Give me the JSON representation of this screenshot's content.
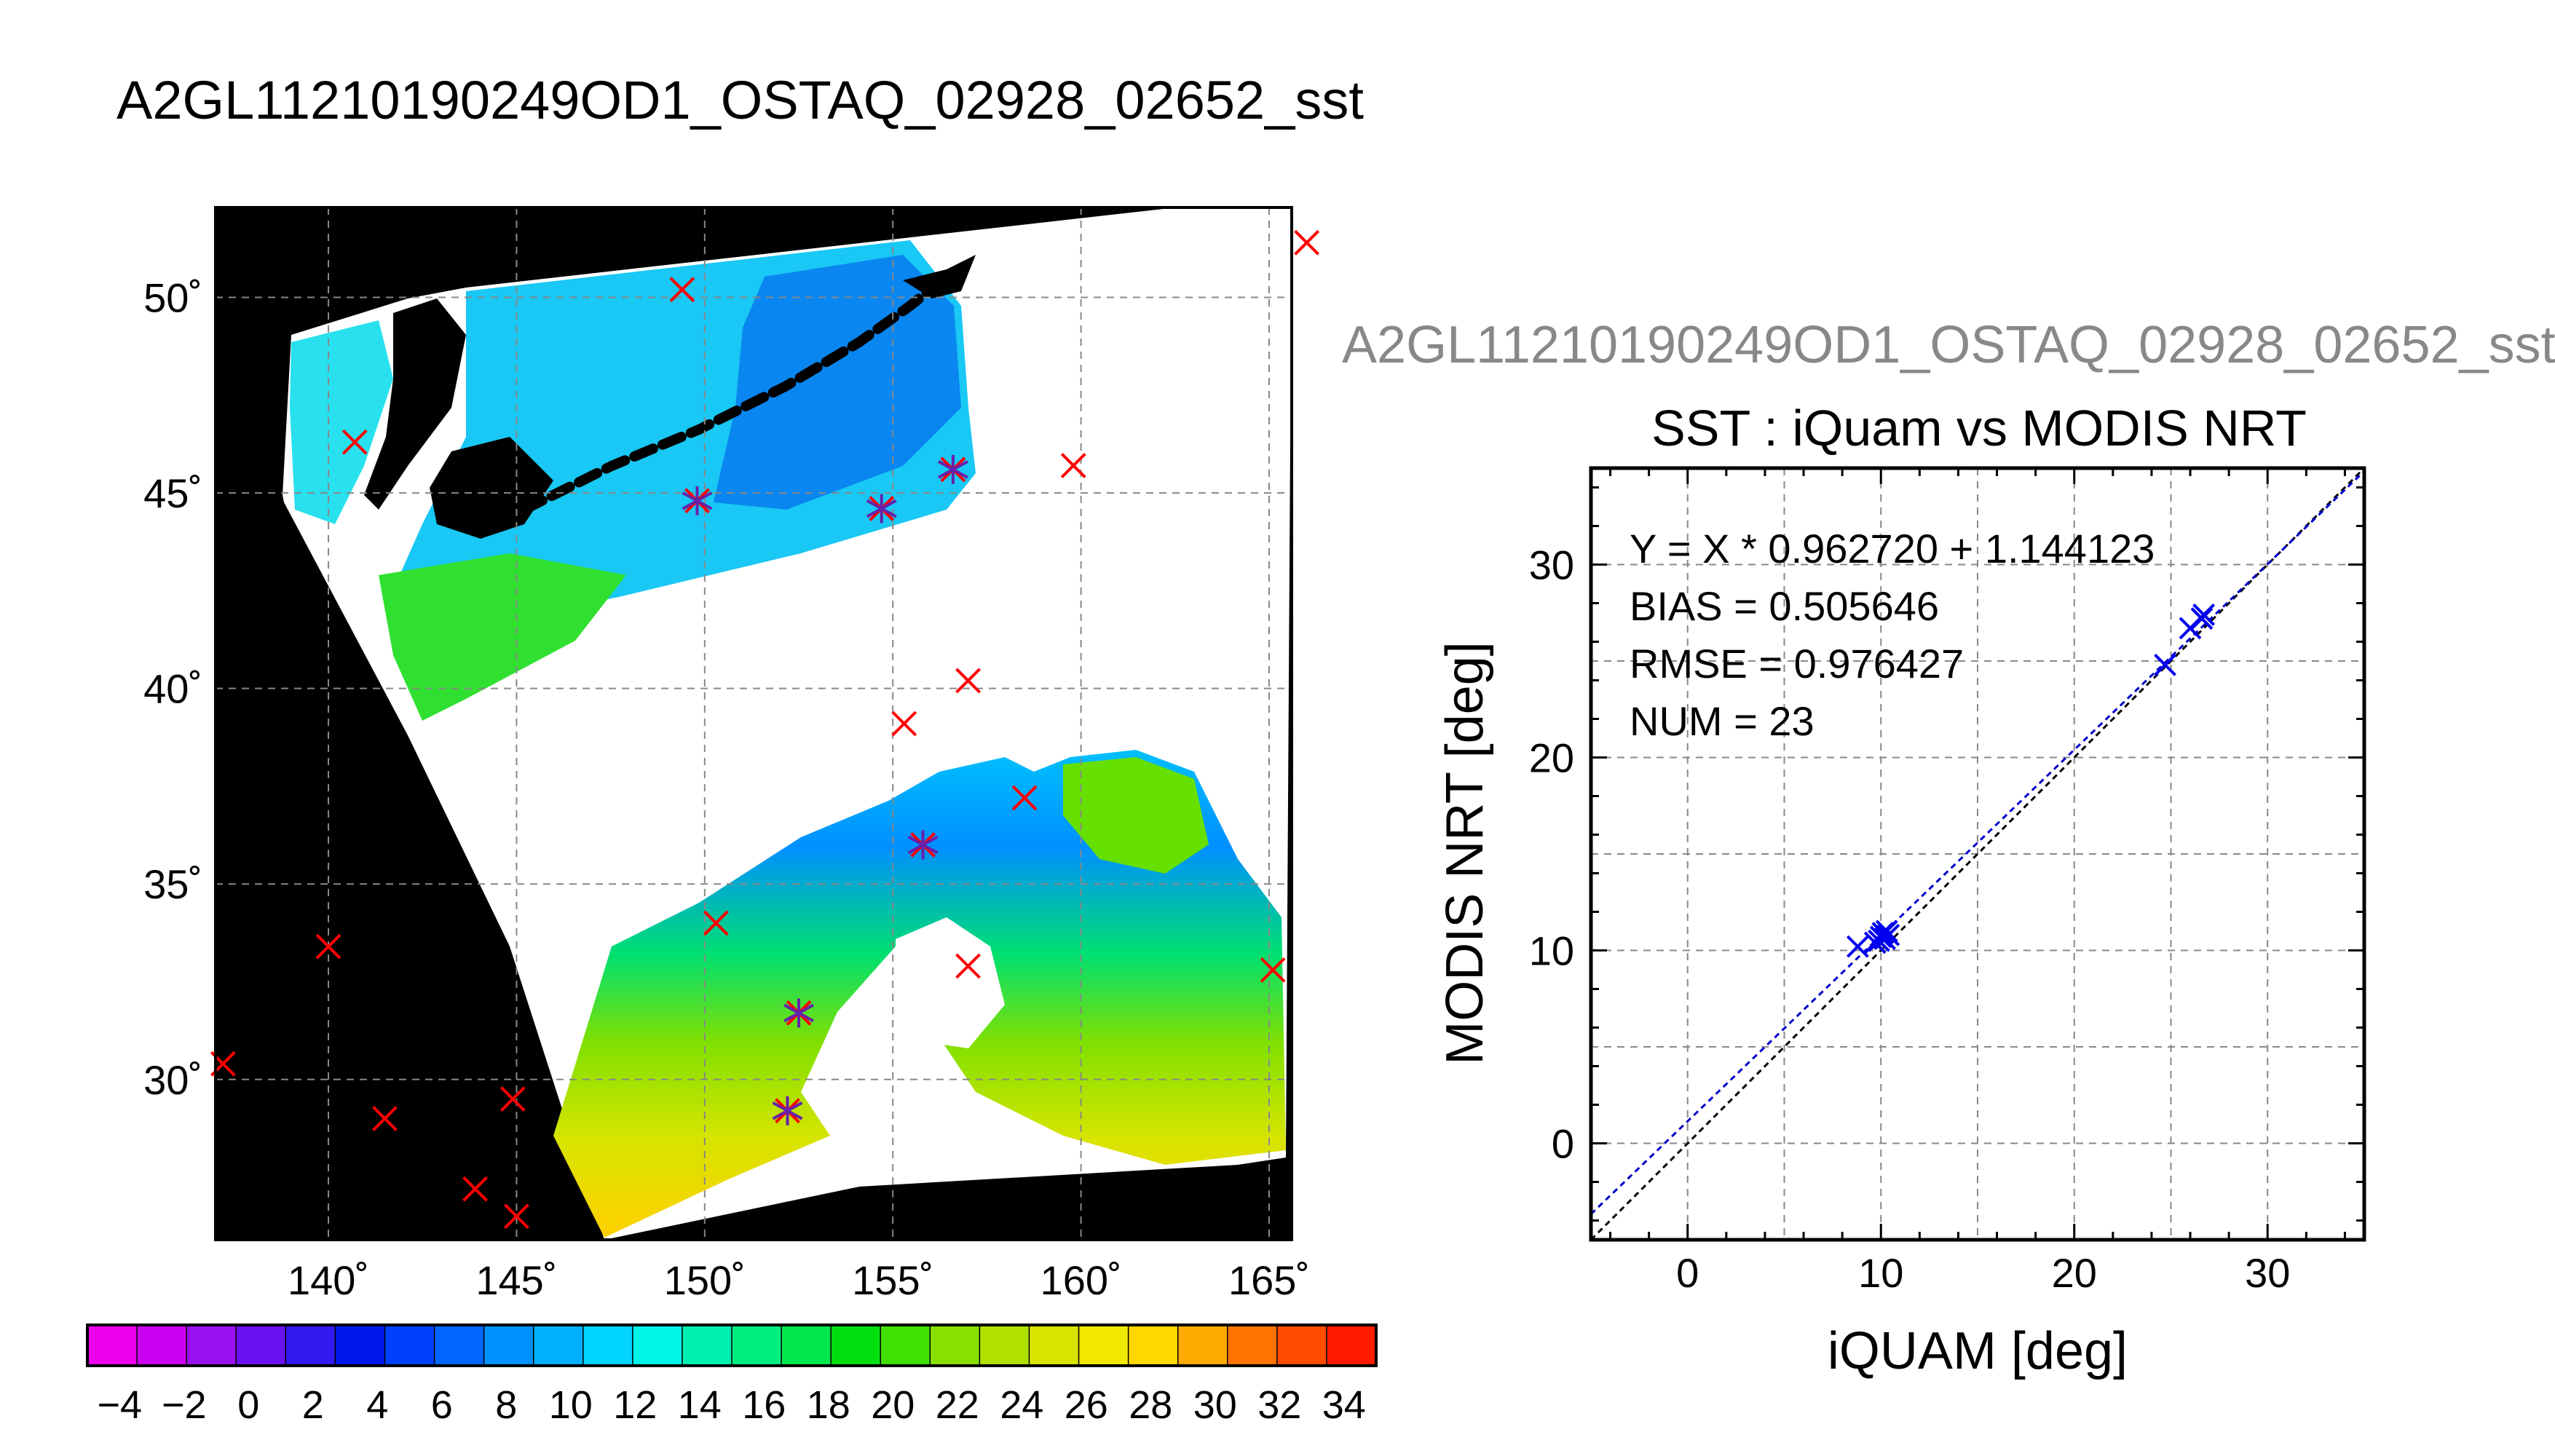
{
  "page": {
    "title": "A2GL11210190249OD1_OSTAQ_02928_02652_sst"
  },
  "colors": {
    "background": "#ffffff",
    "land": "#000000",
    "marker_insitu": "#ff0000",
    "marker_matched": "#6622aa",
    "scatter_points": "#0000ee",
    "grid": "#888888"
  },
  "chart_data": [
    {
      "type": "map",
      "subtype": "sst-swath-map",
      "xticks": [
        "140˚",
        "145˚",
        "150˚",
        "155˚",
        "160˚",
        "165˚"
      ],
      "xtick_values": [
        140,
        145,
        150,
        155,
        160,
        165
      ],
      "yticks": [
        "50˚",
        "45˚",
        "40˚",
        "35˚",
        "30˚"
      ],
      "ytick_values": [
        50,
        45,
        40,
        35,
        30
      ],
      "xlim": [
        137,
        165.6
      ],
      "ylim": [
        25.9,
        52.3
      ],
      "grid": true,
      "insitu_points": [
        {
          "lon": 149.4,
          "lat": 50.2
        },
        {
          "lon": 166.0,
          "lat": 51.4
        },
        {
          "lon": 140.7,
          "lat": 46.3
        },
        {
          "lon": 149.8,
          "lat": 44.8
        },
        {
          "lon": 154.7,
          "lat": 44.6
        },
        {
          "lon": 156.6,
          "lat": 45.6
        },
        {
          "lon": 159.8,
          "lat": 45.7
        },
        {
          "lon": 157.0,
          "lat": 40.2
        },
        {
          "lon": 155.3,
          "lat": 39.1
        },
        {
          "lon": 158.5,
          "lat": 37.2
        },
        {
          "lon": 155.8,
          "lat": 36.0
        },
        {
          "lon": 150.3,
          "lat": 34.0
        },
        {
          "lon": 157.0,
          "lat": 32.9
        },
        {
          "lon": 165.1,
          "lat": 32.8
        },
        {
          "lon": 140.0,
          "lat": 33.4
        },
        {
          "lon": 152.5,
          "lat": 31.7
        },
        {
          "lon": 137.2,
          "lat": 30.4
        },
        {
          "lon": 141.5,
          "lat": 29.0
        },
        {
          "lon": 144.9,
          "lat": 29.5
        },
        {
          "lon": 152.2,
          "lat": 29.2
        },
        {
          "lon": 143.9,
          "lat": 27.2
        },
        {
          "lon": 145.0,
          "lat": 26.5
        }
      ],
      "matched_points": [
        {
          "lon": 149.8,
          "lat": 44.8
        },
        {
          "lon": 154.7,
          "lat": 44.6
        },
        {
          "lon": 156.6,
          "lat": 45.6
        },
        {
          "lon": 155.8,
          "lat": 36.0
        },
        {
          "lon": 152.5,
          "lat": 31.7
        },
        {
          "lon": 152.2,
          "lat": 29.2
        }
      ]
    },
    {
      "type": "colorbar",
      "range": [
        -5,
        35
      ],
      "tick_labels": [
        "−4",
        "−2",
        "0",
        "2",
        "4",
        "6",
        "8",
        "10",
        "12",
        "14",
        "16",
        "18",
        "20",
        "22",
        "24",
        "26",
        "28",
        "30",
        "32",
        "34"
      ],
      "tick_values": [
        -4,
        -2,
        0,
        2,
        4,
        6,
        8,
        10,
        12,
        14,
        16,
        18,
        20,
        22,
        24,
        26,
        28,
        30,
        32,
        34
      ],
      "colors": [
        "#ee00ee",
        "#cc00f0",
        "#9a10f0",
        "#6a10f0",
        "#3318f0",
        "#0018ee",
        "#0040ff",
        "#0066ff",
        "#0090ff",
        "#00b0ff",
        "#00d4ff",
        "#00f4e8",
        "#00f0b0",
        "#00ee80",
        "#00e84c",
        "#00e010",
        "#40e000",
        "#88e000",
        "#b0e000",
        "#d8e400",
        "#f0e800",
        "#ffd800",
        "#ffaa00",
        "#ff7400",
        "#ff4c00",
        "#ff1a00"
      ]
    },
    {
      "type": "scatter",
      "overlay_title": "A2GL11210190249OD1_OSTAQ_02928_02652_sst",
      "title": "SST : iQuam vs MODIS NRT",
      "xlabel": "iQUAM [deg]",
      "ylabel": "MODIS NRT [deg]",
      "xlim": [
        -5,
        35
      ],
      "ylim": [
        -5,
        35
      ],
      "xticks": [
        0,
        10,
        20,
        30
      ],
      "yticks": [
        0,
        10,
        20,
        30
      ],
      "grid": true,
      "stats": [
        "Y = X * 0.962720 + 1.144123",
        "BIAS = 0.505646",
        "RMSE = 0.976427",
        "NUM = 23"
      ],
      "fit": {
        "slope": 0.96272,
        "intercept": 1.144123
      },
      "one_to_one": true,
      "points": [
        {
          "x": 8.8,
          "y": 10.2
        },
        {
          "x": 9.9,
          "y": 10.5
        },
        {
          "x": 10.0,
          "y": 10.7
        },
        {
          "x": 10.1,
          "y": 10.9
        },
        {
          "x": 10.2,
          "y": 10.6
        },
        {
          "x": 10.3,
          "y": 11.0
        },
        {
          "x": 9.7,
          "y": 10.4
        },
        {
          "x": 10.4,
          "y": 10.8
        },
        {
          "x": 24.7,
          "y": 24.8
        },
        {
          "x": 26.0,
          "y": 26.7
        },
        {
          "x": 26.6,
          "y": 27.2
        },
        {
          "x": 26.7,
          "y": 27.4
        }
      ]
    }
  ]
}
